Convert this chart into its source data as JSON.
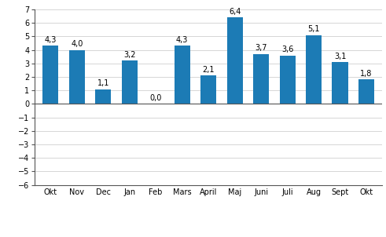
{
  "categories": [
    "Okt",
    "Nov",
    "Dec",
    "Jan",
    "Feb",
    "Mars",
    "April",
    "Maj",
    "Juni",
    "Juli",
    "Aug",
    "Sept",
    "Okt"
  ],
  "values": [
    4.3,
    4.0,
    1.1,
    3.2,
    0.0,
    4.3,
    2.1,
    6.4,
    3.7,
    3.6,
    5.1,
    3.1,
    1.8
  ],
  "bar_color": "#1C7BB5",
  "ylim": [
    -6,
    7
  ],
  "yticks": [
    -6,
    -5,
    -4,
    -3,
    -2,
    -1,
    0,
    1,
    2,
    3,
    4,
    5,
    6,
    7
  ],
  "label_fontsize": 7.0,
  "value_fontsize": 7.0,
  "year_fontsize": 7.5,
  "background_color": "#ffffff",
  "grid_color": "#d0d0d0",
  "bar_width": 0.6,
  "left_spine_color": "#555555",
  "bottom_spine_color": "#555555"
}
